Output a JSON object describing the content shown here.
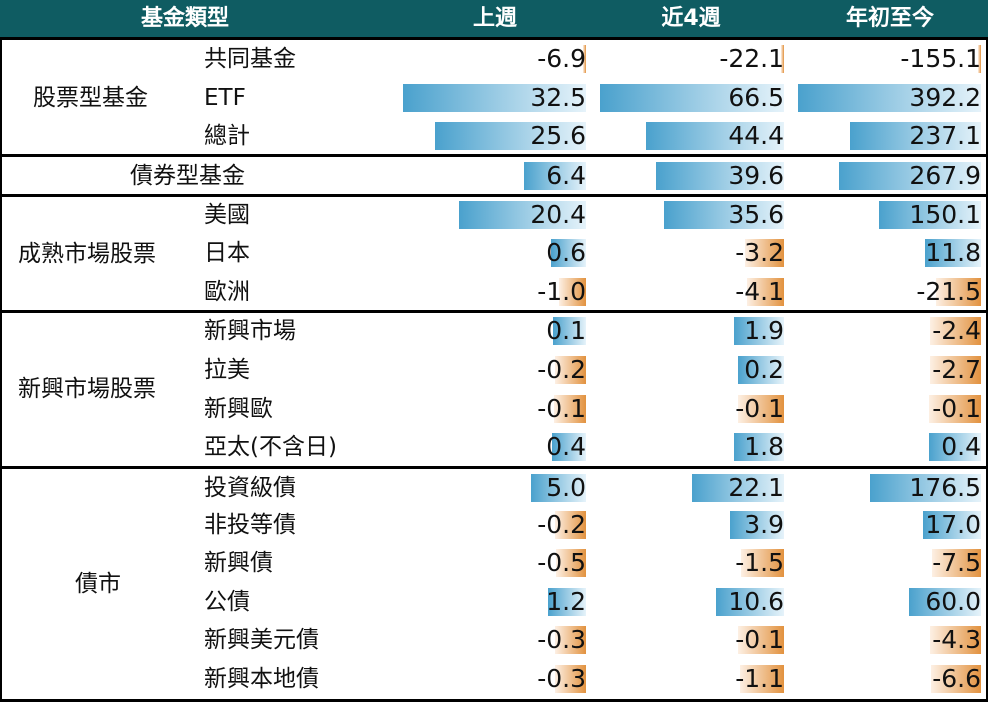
{
  "header": {
    "category": "基金類型",
    "col1": "上週",
    "col2": "近4週",
    "col3": "年初至今"
  },
  "colors": {
    "header_bg": "#0f5c62",
    "positive_bar": "#4aa1cd",
    "negative_bar": "#e2923f"
  },
  "chart_data": {
    "type": "table",
    "columns": [
      "上週",
      "近4週",
      "年初至今"
    ],
    "groups": [
      {
        "name": "股票型基金",
        "rows": [
          {
            "label": "共同基金",
            "values": [
              "-6.9",
              "-22.1",
              "-155.1"
            ]
          },
          {
            "label": "ETF",
            "values": [
              "32.5",
              "66.5",
              "392.2"
            ]
          },
          {
            "label": "總計",
            "values": [
              "25.6",
              "44.4",
              "237.1"
            ]
          }
        ]
      },
      {
        "name": "債券型基金",
        "rows": [
          {
            "label": "",
            "values": [
              "6.4",
              "39.6",
              "267.9"
            ]
          }
        ]
      },
      {
        "name": "成熟市場股票",
        "rows": [
          {
            "label": "美國",
            "values": [
              "20.4",
              "35.6",
              "150.1"
            ]
          },
          {
            "label": "日本",
            "values": [
              "0.6",
              "-3.2",
              "11.8"
            ]
          },
          {
            "label": "歐洲",
            "values": [
              "-1.0",
              "-4.1",
              "-21.5"
            ]
          }
        ]
      },
      {
        "name": "新興市場股票",
        "rows": [
          {
            "label": "新興市場",
            "values": [
              "0.1",
              "1.9",
              "-2.4"
            ]
          },
          {
            "label": "拉美",
            "values": [
              "-0.2",
              "0.2",
              "-2.7"
            ]
          },
          {
            "label": "新興歐",
            "values": [
              "-0.1",
              "-0.1",
              "-0.1"
            ]
          },
          {
            "label": "亞太(不含日)",
            "values": [
              "0.4",
              "1.8",
              "0.4"
            ]
          }
        ]
      },
      {
        "name": "債市",
        "rows": [
          {
            "label": "投資級債",
            "values": [
              "5.0",
              "22.1",
              "176.5"
            ]
          },
          {
            "label": "非投等債",
            "values": [
              "-0.2",
              "3.9",
              "17.0"
            ]
          },
          {
            "label": "新興債",
            "values": [
              "-0.5",
              "-1.5",
              "-7.5"
            ]
          },
          {
            "label": "公債",
            "values": [
              "1.2",
              "10.6",
              "60.0"
            ]
          },
          {
            "label": "新興美元債",
            "values": [
              "-0.3",
              "-0.1",
              "-4.3"
            ]
          },
          {
            "label": "新興本地債",
            "values": [
              "-0.3",
              "-1.1",
              "-6.6"
            ]
          }
        ]
      }
    ]
  }
}
